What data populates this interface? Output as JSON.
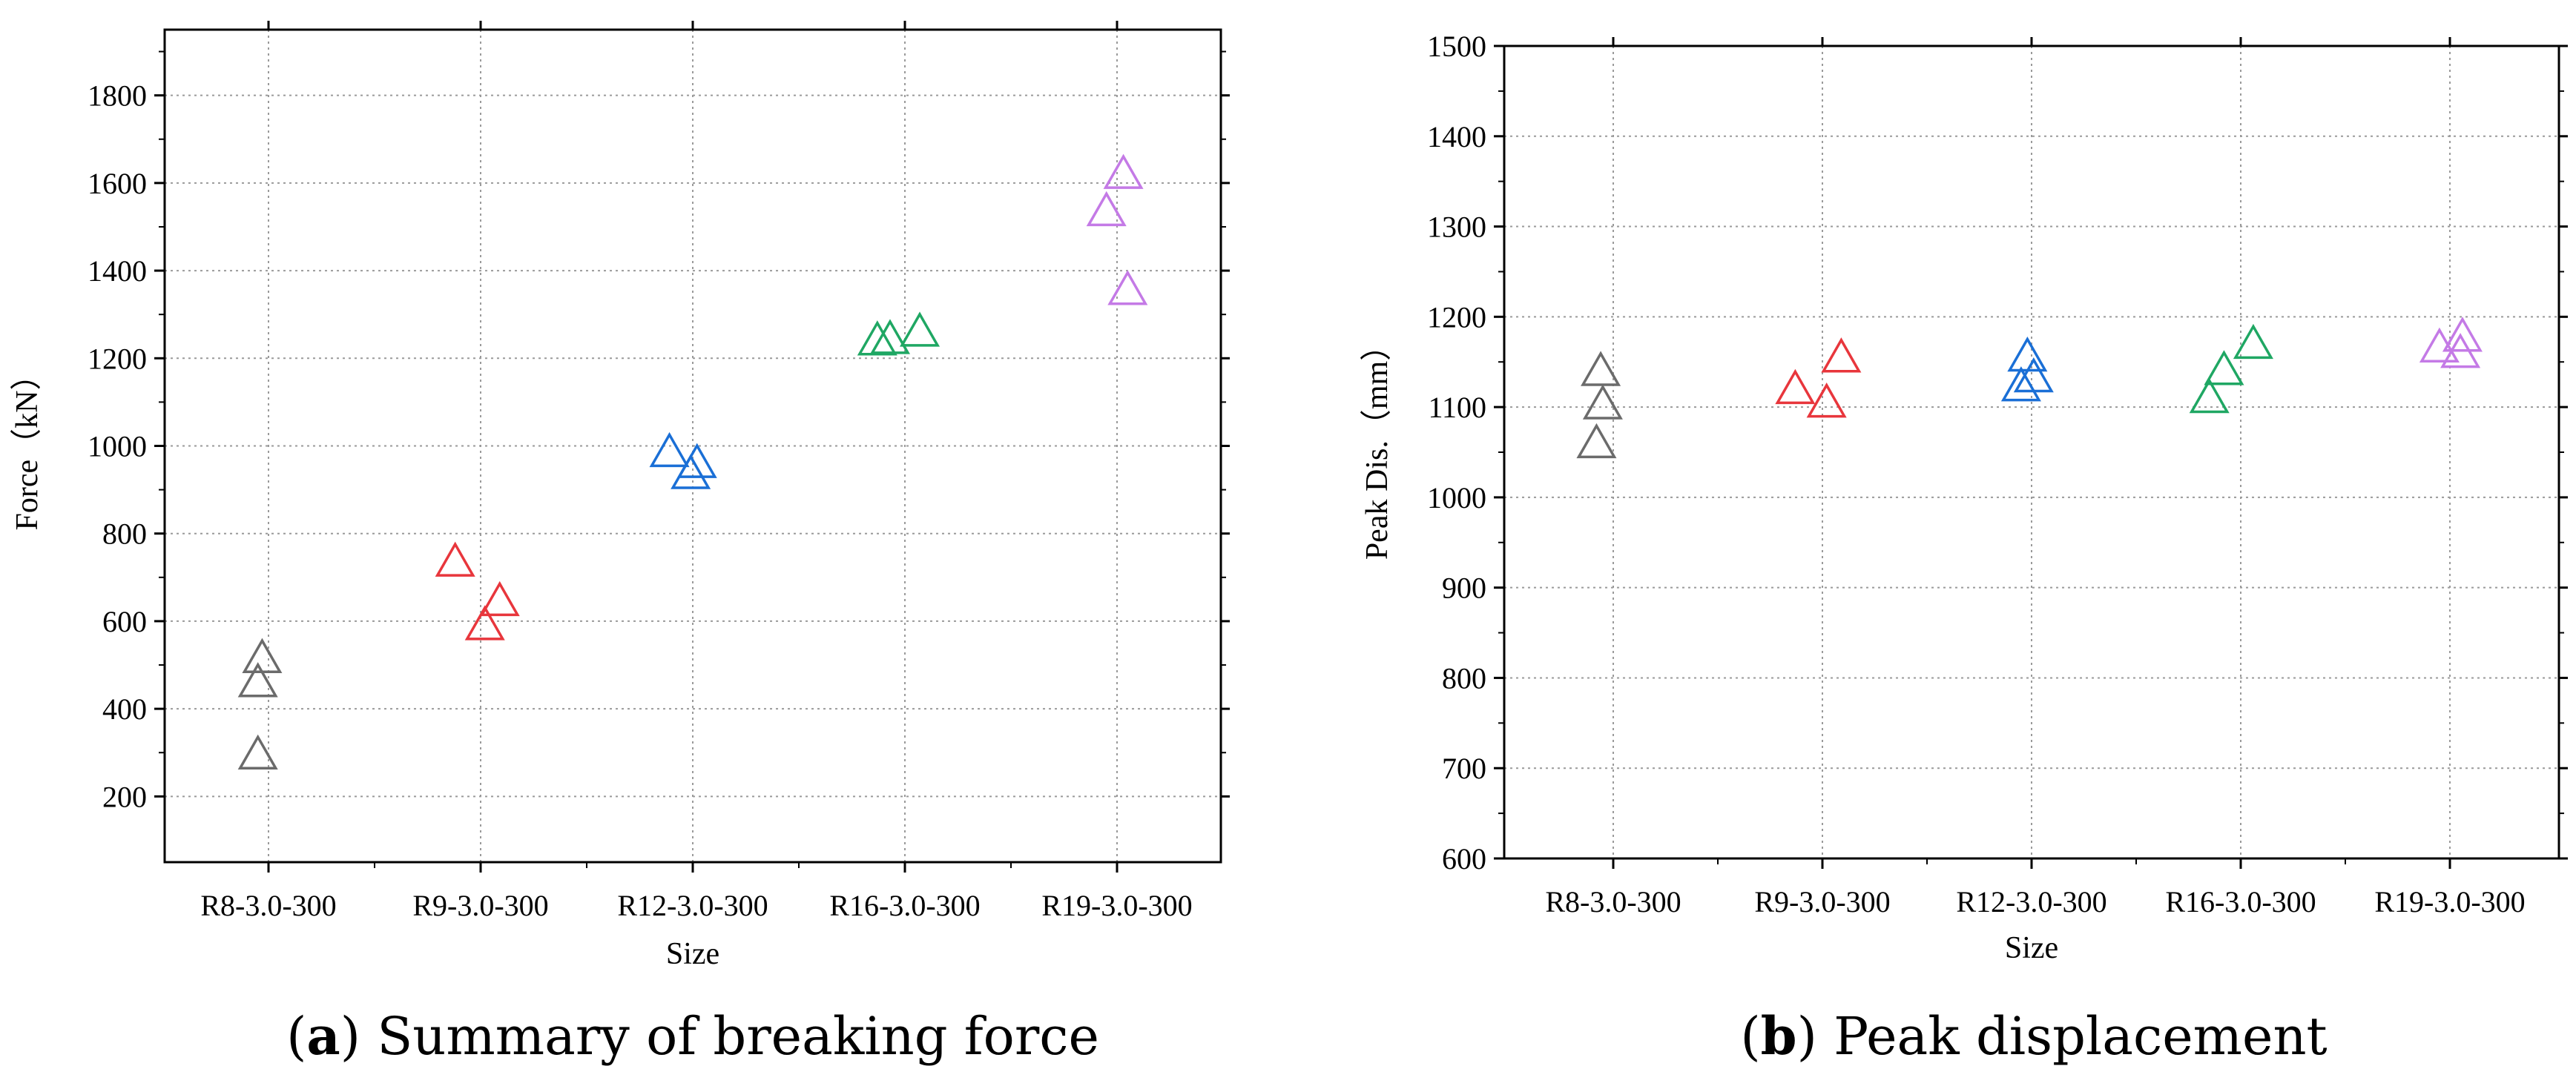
{
  "chart_data": [
    {
      "type": "scatter",
      "caption": {
        "letter": "a",
        "open": "(",
        "close": ")",
        "text": " Summary of breaking force"
      },
      "xlabel": "Size",
      "ylabel": "Force（kN）",
      "categories": [
        "R8-3.0-300",
        "R9-3.0-300",
        "R12-3.0-300",
        "R16-3.0-300",
        "R19-3.0-300"
      ],
      "yticks": [
        200,
        400,
        600,
        800,
        1000,
        1200,
        1400,
        1600,
        1800
      ],
      "ylim": [
        50,
        1950
      ],
      "grid": true,
      "marker": "open-triangle",
      "series": [
        {
          "color": "#6b6b6b",
          "points": [
            [
              -0.05,
              300
            ],
            [
              -0.05,
              465
            ],
            [
              -0.03,
              520
            ]
          ]
        },
        {
          "color": "#e8363c",
          "points": [
            [
              -0.12,
              740
            ],
            [
              0.02,
              595
            ],
            [
              0.09,
              650
            ]
          ]
        },
        {
          "color": "#1a6fd6",
          "points": [
            [
              -0.11,
              990
            ],
            [
              -0.01,
              940
            ],
            [
              0.02,
              965
            ]
          ]
        },
        {
          "color": "#1fa763",
          "points": [
            [
              -0.13,
              1245
            ],
            [
              -0.07,
              1248
            ],
            [
              0.07,
              1265
            ]
          ]
        },
        {
          "color": "#c47ae6",
          "points": [
            [
              -0.05,
              1540
            ],
            [
              0.03,
              1625
            ],
            [
              0.05,
              1360
            ]
          ]
        }
      ]
    },
    {
      "type": "scatter",
      "caption": {
        "letter": "b",
        "open": "(",
        "close": ")",
        "text": " Peak displacement"
      },
      "xlabel": "Size",
      "ylabel": "Peak Dis.（mm）",
      "categories": [
        "R8-3.0-300",
        "R9-3.0-300",
        "R12-3.0-300",
        "R16-3.0-300",
        "R19-3.0-300"
      ],
      "yticks": [
        600,
        700,
        800,
        900,
        1000,
        1100,
        1200,
        1300,
        1400,
        1500
      ],
      "ylim": [
        600,
        1500
      ],
      "grid": true,
      "marker": "open-triangle",
      "series": [
        {
          "color": "#6b6b6b",
          "points": [
            [
              -0.08,
              1062
            ],
            [
              -0.05,
              1105
            ],
            [
              -0.06,
              1142
            ]
          ]
        },
        {
          "color": "#e8363c",
          "points": [
            [
              -0.13,
              1122
            ],
            [
              0.02,
              1107
            ],
            [
              0.09,
              1157
            ]
          ]
        },
        {
          "color": "#1a6fd6",
          "points": [
            [
              -0.05,
              1125
            ],
            [
              -0.02,
              1158
            ],
            [
              0.01,
              1135
            ]
          ]
        },
        {
          "color": "#1fa763",
          "points": [
            [
              -0.15,
              1112
            ],
            [
              -0.08,
              1143
            ],
            [
              0.06,
              1172
            ]
          ]
        },
        {
          "color": "#c47ae6",
          "points": [
            [
              -0.05,
              1168
            ],
            [
              0.05,
              1162
            ],
            [
              0.06,
              1180
            ]
          ]
        }
      ]
    }
  ]
}
